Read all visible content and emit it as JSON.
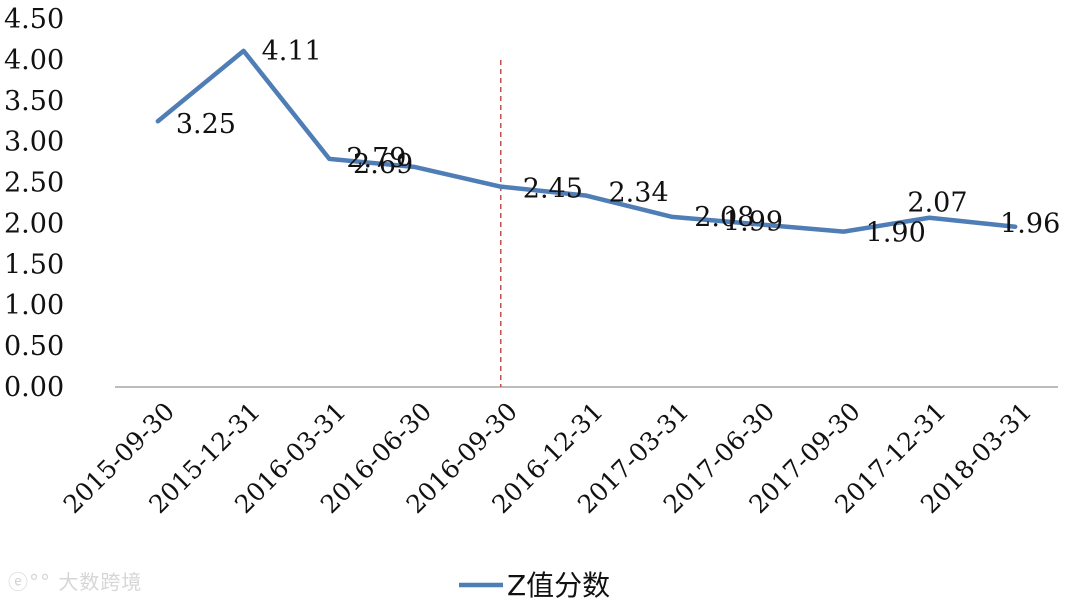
{
  "chart_data": {
    "type": "line",
    "categories": [
      "2015-09-30",
      "2015-12-31",
      "2016-03-31",
      "2016-06-30",
      "2016-09-30",
      "2016-12-31",
      "2017-03-31",
      "2017-06-30",
      "2017-09-30",
      "2017-12-31",
      "2018-03-31"
    ],
    "series": [
      {
        "name": "Z值分数",
        "values": [
          3.25,
          4.11,
          2.79,
          2.69,
          2.45,
          2.34,
          2.08,
          1.99,
          1.9,
          2.07,
          1.96
        ],
        "color": "#4F7DB5"
      }
    ],
    "data_labels": [
      "3.25",
      "4.11",
      "2.79",
      "2.69",
      "2.45",
      "2.34",
      "2.08",
      "1.99",
      "1.90",
      "2.07",
      "1.96"
    ],
    "y_ticks": [
      "0.00",
      "0.50",
      "1.00",
      "1.50",
      "2.00",
      "2.50",
      "3.00",
      "3.50",
      "4.00",
      "4.50"
    ],
    "ylim": [
      0,
      4.5
    ],
    "reference_line": {
      "category": "2016-09-30",
      "color": "#C0504D",
      "style": "dashed"
    },
    "grid": false,
    "legend": {
      "position": "bottom-center",
      "label": "Z值分数"
    },
    "title": "",
    "xlabel": "",
    "ylabel": ""
  },
  "watermark": {
    "text": "大数跨境",
    "icon": "weibo-like-logo-icon"
  }
}
